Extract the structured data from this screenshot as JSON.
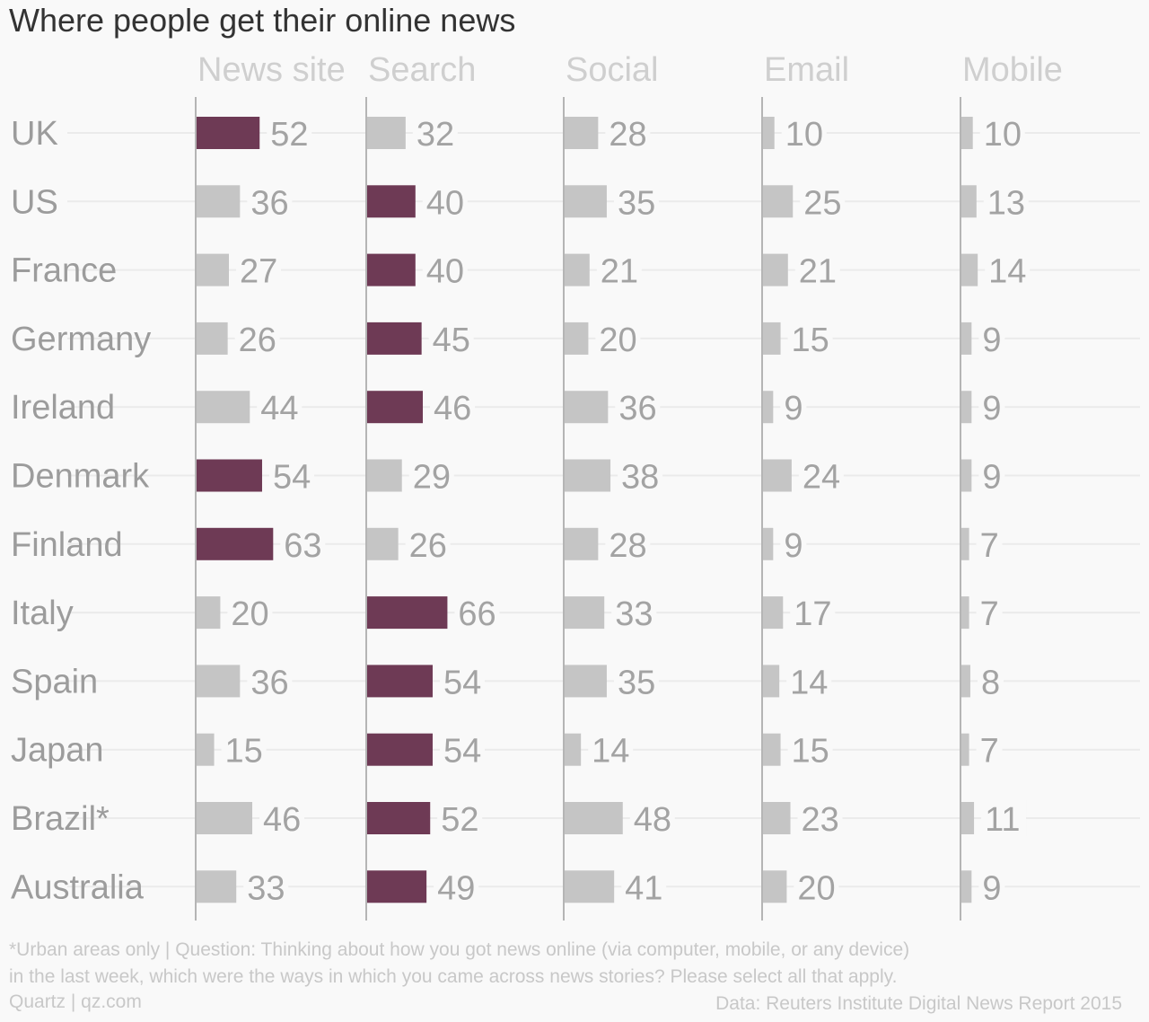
{
  "chart_data": {
    "type": "bar",
    "title": "Where people get their online news",
    "categories": [
      "UK",
      "US",
      "France",
      "Germany",
      "Ireland",
      "Denmark",
      "Finland",
      "Italy",
      "Spain",
      "Japan",
      "Brazil*",
      "Australia"
    ],
    "series": [
      {
        "name": "News site",
        "values": [
          52,
          36,
          27,
          26,
          44,
          54,
          63,
          20,
          36,
          15,
          46,
          33
        ]
      },
      {
        "name": "Search",
        "values": [
          32,
          40,
          40,
          45,
          46,
          29,
          26,
          66,
          54,
          54,
          52,
          49
        ]
      },
      {
        "name": "Social",
        "values": [
          28,
          35,
          21,
          20,
          36,
          38,
          28,
          33,
          35,
          14,
          48,
          41
        ]
      },
      {
        "name": "Email",
        "values": [
          10,
          25,
          21,
          15,
          9,
          24,
          9,
          17,
          14,
          15,
          23,
          20
        ]
      },
      {
        "name": "Mobile",
        "values": [
          10,
          13,
          14,
          9,
          9,
          9,
          7,
          7,
          8,
          7,
          11,
          9
        ]
      }
    ],
    "highlight_max_per_row": true,
    "colors": {
      "highlight": "#6e3a55",
      "default": "#c5c5c5"
    }
  },
  "footnote_line1": "*Urban areas only | Question: Thinking about how you got news online (via computer, mobile, or any device)",
  "footnote_line2": "in the last week, which were the ways in which you came across news stories? Please select all that apply.",
  "branding": "Quartz | qz.com",
  "source": "Data: Reuters Institute Digital News Report 2015"
}
